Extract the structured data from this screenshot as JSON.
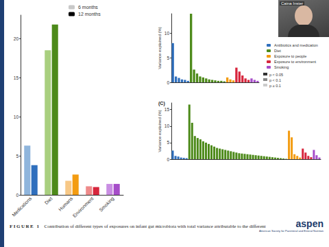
{
  "chart_data": [
    {
      "type": "bar",
      "categories": [
        "Medications",
        "Diet",
        "Humans",
        "Environment",
        "Smoking"
      ],
      "series": [
        {
          "name": "6 months",
          "color": "#c8c8c8",
          "colors": [
            "#8fb5dc",
            "#a9cf7f",
            "#f7c887",
            "#ee8a8a",
            "#c98ee3"
          ],
          "values": [
            6.3,
            18.5,
            1.8,
            1.1,
            1.4
          ]
        },
        {
          "name": "12 months",
          "color": "#000000",
          "colors": [
            "#2f6fbd",
            "#4d8a1a",
            "#f39c12",
            "#d7263d",
            "#a64dc9"
          ],
          "values": [
            3.8,
            21.8,
            2.6,
            1.0,
            1.4
          ]
        }
      ],
      "ylim": [
        0,
        23
      ],
      "yticks": [
        0,
        5,
        10,
        15,
        20
      ],
      "grid": false,
      "legend": "top-right"
    },
    {
      "type": "bar",
      "y_label": "Variance explained (%)",
      "categories": [
        null,
        null,
        null,
        null,
        null,
        null,
        null,
        null,
        null,
        null,
        null,
        null,
        null,
        null,
        null,
        null,
        null,
        null,
        null,
        null,
        null,
        null,
        null,
        null,
        null,
        null,
        null,
        null,
        null
      ],
      "series": [
        {
          "name": "Antibiotics and medication",
          "color": "#2f6fbd",
          "values": [
            8.0,
            1.2,
            0.9,
            0.6,
            0.5,
            0.3,
            null,
            null,
            null,
            null,
            null,
            null,
            null,
            null,
            null,
            null,
            null,
            null,
            null,
            null,
            null,
            null,
            null,
            null,
            null,
            null,
            null,
            null,
            null
          ]
        },
        {
          "name": "Diet",
          "color": "#4d8a1a",
          "values": [
            null,
            null,
            null,
            null,
            null,
            null,
            14.0,
            2.6,
            1.8,
            1.2,
            1.0,
            0.8,
            0.6,
            0.5,
            0.4,
            0.3,
            0.3,
            0.2,
            null,
            null,
            null,
            null,
            null,
            null,
            null,
            null,
            null,
            null,
            null
          ]
        },
        {
          "name": "Exposure to people",
          "color": "#f39c12",
          "values": [
            null,
            null,
            null,
            null,
            null,
            null,
            null,
            null,
            null,
            null,
            null,
            null,
            null,
            null,
            null,
            null,
            null,
            null,
            1.0,
            0.6,
            0.4,
            null,
            null,
            null,
            null,
            null,
            null,
            null,
            null
          ]
        },
        {
          "name": "Exposure to environment",
          "color": "#d7263d",
          "values": [
            null,
            null,
            null,
            null,
            null,
            null,
            null,
            null,
            null,
            null,
            null,
            null,
            null,
            null,
            null,
            null,
            null,
            null,
            null,
            null,
            null,
            3.0,
            2.2,
            1.4,
            0.8,
            0.5,
            null,
            null,
            null
          ]
        },
        {
          "name": "Smoking",
          "color": "#a64dc9",
          "values": [
            null,
            null,
            null,
            null,
            null,
            null,
            null,
            null,
            null,
            null,
            null,
            null,
            null,
            null,
            null,
            null,
            null,
            null,
            null,
            null,
            null,
            null,
            null,
            null,
            null,
            null,
            0.8,
            0.5,
            0.3
          ]
        }
      ],
      "significance": [
        {
          "label": "p < 0.05",
          "color": "#333333"
        },
        {
          "label": "p < 0.1",
          "color": "#888888"
        },
        {
          "label": "p ≥ 0.1",
          "color": "#cccccc"
        }
      ],
      "ylim": [
        0,
        14
      ],
      "yticks": [
        0,
        5,
        10
      ],
      "grid": false,
      "stacked": true,
      "legend": "right",
      "tick_labels": "y"
    },
    {
      "type": "bar",
      "title": "(C)",
      "y_label": "Variance explained (%)",
      "categories": [
        null,
        null,
        null,
        null,
        null,
        null,
        null,
        null,
        null,
        null,
        null,
        null,
        null,
        null,
        null,
        null,
        null,
        null,
        null,
        null,
        null,
        null,
        null,
        null,
        null,
        null,
        null,
        null,
        null,
        null,
        null,
        null,
        null,
        null,
        null,
        null,
        null,
        null,
        null,
        null,
        null,
        null,
        null,
        null,
        null,
        null,
        null,
        null,
        null,
        null,
        null,
        null,
        null,
        null
      ],
      "series": [
        {
          "name": "Antibiotics and medication",
          "color": "#2f6fbd",
          "values": [
            2.6,
            1.0,
            0.8,
            0.5,
            0.4,
            0.3,
            null,
            null,
            null,
            null,
            null,
            null,
            null,
            null,
            null,
            null,
            null,
            null,
            null,
            null,
            null,
            null,
            null,
            null,
            null,
            null,
            null,
            null,
            null,
            null,
            null,
            null,
            null,
            null,
            null,
            null,
            null,
            null,
            null,
            null,
            null,
            null,
            null,
            null,
            null,
            null,
            null,
            null,
            null,
            null,
            null,
            null,
            null,
            null
          ]
        },
        {
          "name": "Diet",
          "color": "#4d8a1a",
          "values": [
            null,
            null,
            null,
            null,
            null,
            null,
            16.5,
            11.0,
            7.0,
            6.4,
            6.0,
            5.4,
            5.0,
            4.6,
            4.2,
            3.8,
            3.4,
            3.2,
            3.0,
            2.8,
            2.6,
            2.4,
            2.2,
            2.0,
            1.8,
            1.7,
            1.6,
            1.5,
            1.4,
            1.3,
            1.2,
            1.1,
            1.0,
            0.9,
            0.8,
            0.7,
            0.6,
            0.5,
            0.4,
            0.3,
            0.2,
            0.1,
            null,
            null,
            null,
            null,
            null,
            null,
            null,
            null,
            null,
            null,
            null,
            null
          ]
        },
        {
          "name": "Exposure to people",
          "color": "#f39c12",
          "values": [
            null,
            null,
            null,
            null,
            null,
            null,
            null,
            null,
            null,
            null,
            null,
            null,
            null,
            null,
            null,
            null,
            null,
            null,
            null,
            null,
            null,
            null,
            null,
            null,
            null,
            null,
            null,
            null,
            null,
            null,
            null,
            null,
            null,
            null,
            null,
            null,
            null,
            null,
            null,
            null,
            null,
            null,
            8.6,
            6.6,
            1.5,
            1.0,
            0.5,
            null,
            null,
            null,
            null,
            null,
            null,
            null
          ]
        },
        {
          "name": "Exposure to environment",
          "color": "#d7263d",
          "values": [
            null,
            null,
            null,
            null,
            null,
            null,
            null,
            null,
            null,
            null,
            null,
            null,
            null,
            null,
            null,
            null,
            null,
            null,
            null,
            null,
            null,
            null,
            null,
            null,
            null,
            null,
            null,
            null,
            null,
            null,
            null,
            null,
            null,
            null,
            null,
            null,
            null,
            null,
            null,
            null,
            null,
            null,
            null,
            null,
            null,
            null,
            null,
            3.2,
            2.0,
            1.0,
            0.6,
            null,
            null,
            null
          ]
        },
        {
          "name": "Smoking",
          "color": "#a64dc9",
          "values": [
            null,
            null,
            null,
            null,
            null,
            null,
            null,
            null,
            null,
            null,
            null,
            null,
            null,
            null,
            null,
            null,
            null,
            null,
            null,
            null,
            null,
            null,
            null,
            null,
            null,
            null,
            null,
            null,
            null,
            null,
            null,
            null,
            null,
            null,
            null,
            null,
            null,
            null,
            null,
            null,
            null,
            null,
            null,
            null,
            null,
            null,
            null,
            null,
            null,
            null,
            null,
            2.8,
            1.2,
            0.5
          ]
        }
      ],
      "ylim": [
        0,
        17
      ],
      "yticks": [
        0,
        5,
        10,
        15
      ],
      "grid": false,
      "stacked": true,
      "tick_labels": "y"
    }
  ],
  "figure_label": "FIGURE 1",
  "caption": "Contribution of different types of exposures on infant gut microbiota with total variance attributable to the different",
  "speaker": "Caina Inster",
  "logo": "aspen",
  "logo_subtitle": "American Society for Parenteral and Enteral Nutrition"
}
